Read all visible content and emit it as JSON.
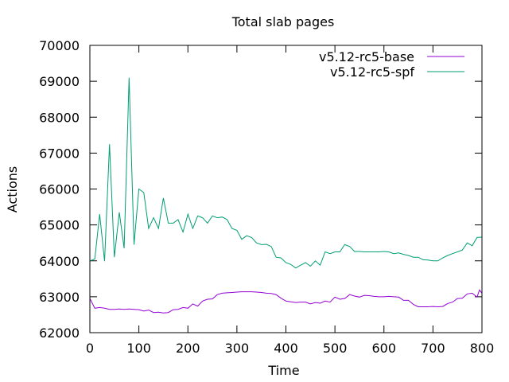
{
  "chart_data": {
    "type": "line",
    "title": "Total slab pages",
    "xlabel": "Time",
    "ylabel": "Actions",
    "xlim": [
      0,
      800
    ],
    "ylim": [
      62000,
      70000
    ],
    "xticks": [
      0,
      100,
      200,
      300,
      400,
      500,
      600,
      700,
      800
    ],
    "yticks": [
      62000,
      63000,
      64000,
      65000,
      66000,
      67000,
      68000,
      69000,
      70000
    ],
    "grid": false,
    "legend_position": "top-right",
    "series": [
      {
        "name": "v5.12-rc5-base",
        "color": "#9400d3",
        "points": [
          [
            0,
            62950
          ],
          [
            10,
            62680
          ],
          [
            20,
            62700
          ],
          [
            30,
            62680
          ],
          [
            40,
            62650
          ],
          [
            50,
            62650
          ],
          [
            60,
            62660
          ],
          [
            70,
            62650
          ],
          [
            80,
            62660
          ],
          [
            90,
            62650
          ],
          [
            100,
            62640
          ],
          [
            110,
            62600
          ],
          [
            120,
            62630
          ],
          [
            130,
            62560
          ],
          [
            140,
            62570
          ],
          [
            150,
            62550
          ],
          [
            160,
            62560
          ],
          [
            170,
            62640
          ],
          [
            180,
            62650
          ],
          [
            190,
            62700
          ],
          [
            200,
            62680
          ],
          [
            210,
            62800
          ],
          [
            220,
            62740
          ],
          [
            230,
            62880
          ],
          [
            240,
            62930
          ],
          [
            250,
            62940
          ],
          [
            260,
            63060
          ],
          [
            270,
            63100
          ],
          [
            280,
            63110
          ],
          [
            290,
            63120
          ],
          [
            300,
            63130
          ],
          [
            310,
            63140
          ],
          [
            320,
            63140
          ],
          [
            330,
            63140
          ],
          [
            340,
            63130
          ],
          [
            350,
            63120
          ],
          [
            360,
            63100
          ],
          [
            370,
            63090
          ],
          [
            380,
            63060
          ],
          [
            390,
            62960
          ],
          [
            400,
            62880
          ],
          [
            410,
            62860
          ],
          [
            420,
            62840
          ],
          [
            430,
            62850
          ],
          [
            440,
            62850
          ],
          [
            450,
            62800
          ],
          [
            460,
            62840
          ],
          [
            470,
            62820
          ],
          [
            480,
            62880
          ],
          [
            490,
            62850
          ],
          [
            500,
            62990
          ],
          [
            510,
            62930
          ],
          [
            520,
            62950
          ],
          [
            530,
            63060
          ],
          [
            540,
            63020
          ],
          [
            550,
            62990
          ],
          [
            560,
            63040
          ],
          [
            570,
            63030
          ],
          [
            580,
            63010
          ],
          [
            590,
            63000
          ],
          [
            600,
            63000
          ],
          [
            610,
            63010
          ],
          [
            620,
            63000
          ],
          [
            630,
            62990
          ],
          [
            640,
            62900
          ],
          [
            650,
            62900
          ],
          [
            660,
            62790
          ],
          [
            670,
            62720
          ],
          [
            680,
            62720
          ],
          [
            690,
            62720
          ],
          [
            700,
            62730
          ],
          [
            710,
            62720
          ],
          [
            720,
            62730
          ],
          [
            730,
            62810
          ],
          [
            740,
            62850
          ],
          [
            750,
            62950
          ],
          [
            760,
            62960
          ],
          [
            770,
            63080
          ],
          [
            780,
            63100
          ],
          [
            790,
            62990
          ],
          [
            795,
            63190
          ],
          [
            800,
            63100
          ]
        ]
      },
      {
        "name": "v5.12-rc5-spf",
        "color": "#009e73",
        "points": [
          [
            0,
            64000
          ],
          [
            10,
            64050
          ],
          [
            20,
            65300
          ],
          [
            30,
            63990
          ],
          [
            40,
            67250
          ],
          [
            50,
            64100
          ],
          [
            60,
            65350
          ],
          [
            70,
            64350
          ],
          [
            80,
            69100
          ],
          [
            90,
            64450
          ],
          [
            100,
            66000
          ],
          [
            110,
            65900
          ],
          [
            120,
            64900
          ],
          [
            130,
            65200
          ],
          [
            140,
            64900
          ],
          [
            150,
            65750
          ],
          [
            160,
            65050
          ],
          [
            170,
            65050
          ],
          [
            180,
            65150
          ],
          [
            190,
            64800
          ],
          [
            200,
            65300
          ],
          [
            210,
            64900
          ],
          [
            220,
            65250
          ],
          [
            230,
            65200
          ],
          [
            240,
            65050
          ],
          [
            250,
            65250
          ],
          [
            260,
            65200
          ],
          [
            270,
            65220
          ],
          [
            280,
            65150
          ],
          [
            290,
            64900
          ],
          [
            300,
            64850
          ],
          [
            310,
            64600
          ],
          [
            320,
            64700
          ],
          [
            330,
            64650
          ],
          [
            340,
            64500
          ],
          [
            350,
            64450
          ],
          [
            360,
            64460
          ],
          [
            370,
            64400
          ],
          [
            380,
            64100
          ],
          [
            390,
            64080
          ],
          [
            400,
            63950
          ],
          [
            410,
            63900
          ],
          [
            420,
            63800
          ],
          [
            430,
            63880
          ],
          [
            440,
            63950
          ],
          [
            450,
            63850
          ],
          [
            460,
            64000
          ],
          [
            470,
            63880
          ],
          [
            480,
            64250
          ],
          [
            490,
            64200
          ],
          [
            500,
            64250
          ],
          [
            510,
            64250
          ],
          [
            520,
            64450
          ],
          [
            530,
            64400
          ],
          [
            540,
            64260
          ],
          [
            550,
            64260
          ],
          [
            560,
            64250
          ],
          [
            570,
            64250
          ],
          [
            580,
            64250
          ],
          [
            590,
            64250
          ],
          [
            600,
            64260
          ],
          [
            610,
            64250
          ],
          [
            620,
            64200
          ],
          [
            630,
            64220
          ],
          [
            640,
            64180
          ],
          [
            650,
            64150
          ],
          [
            660,
            64100
          ],
          [
            670,
            64100
          ],
          [
            680,
            64030
          ],
          [
            690,
            64020
          ],
          [
            700,
            64000
          ],
          [
            710,
            64000
          ],
          [
            720,
            64080
          ],
          [
            730,
            64150
          ],
          [
            740,
            64200
          ],
          [
            750,
            64250
          ],
          [
            760,
            64300
          ],
          [
            770,
            64500
          ],
          [
            780,
            64420
          ],
          [
            790,
            64650
          ],
          [
            800,
            64660
          ]
        ]
      }
    ]
  }
}
